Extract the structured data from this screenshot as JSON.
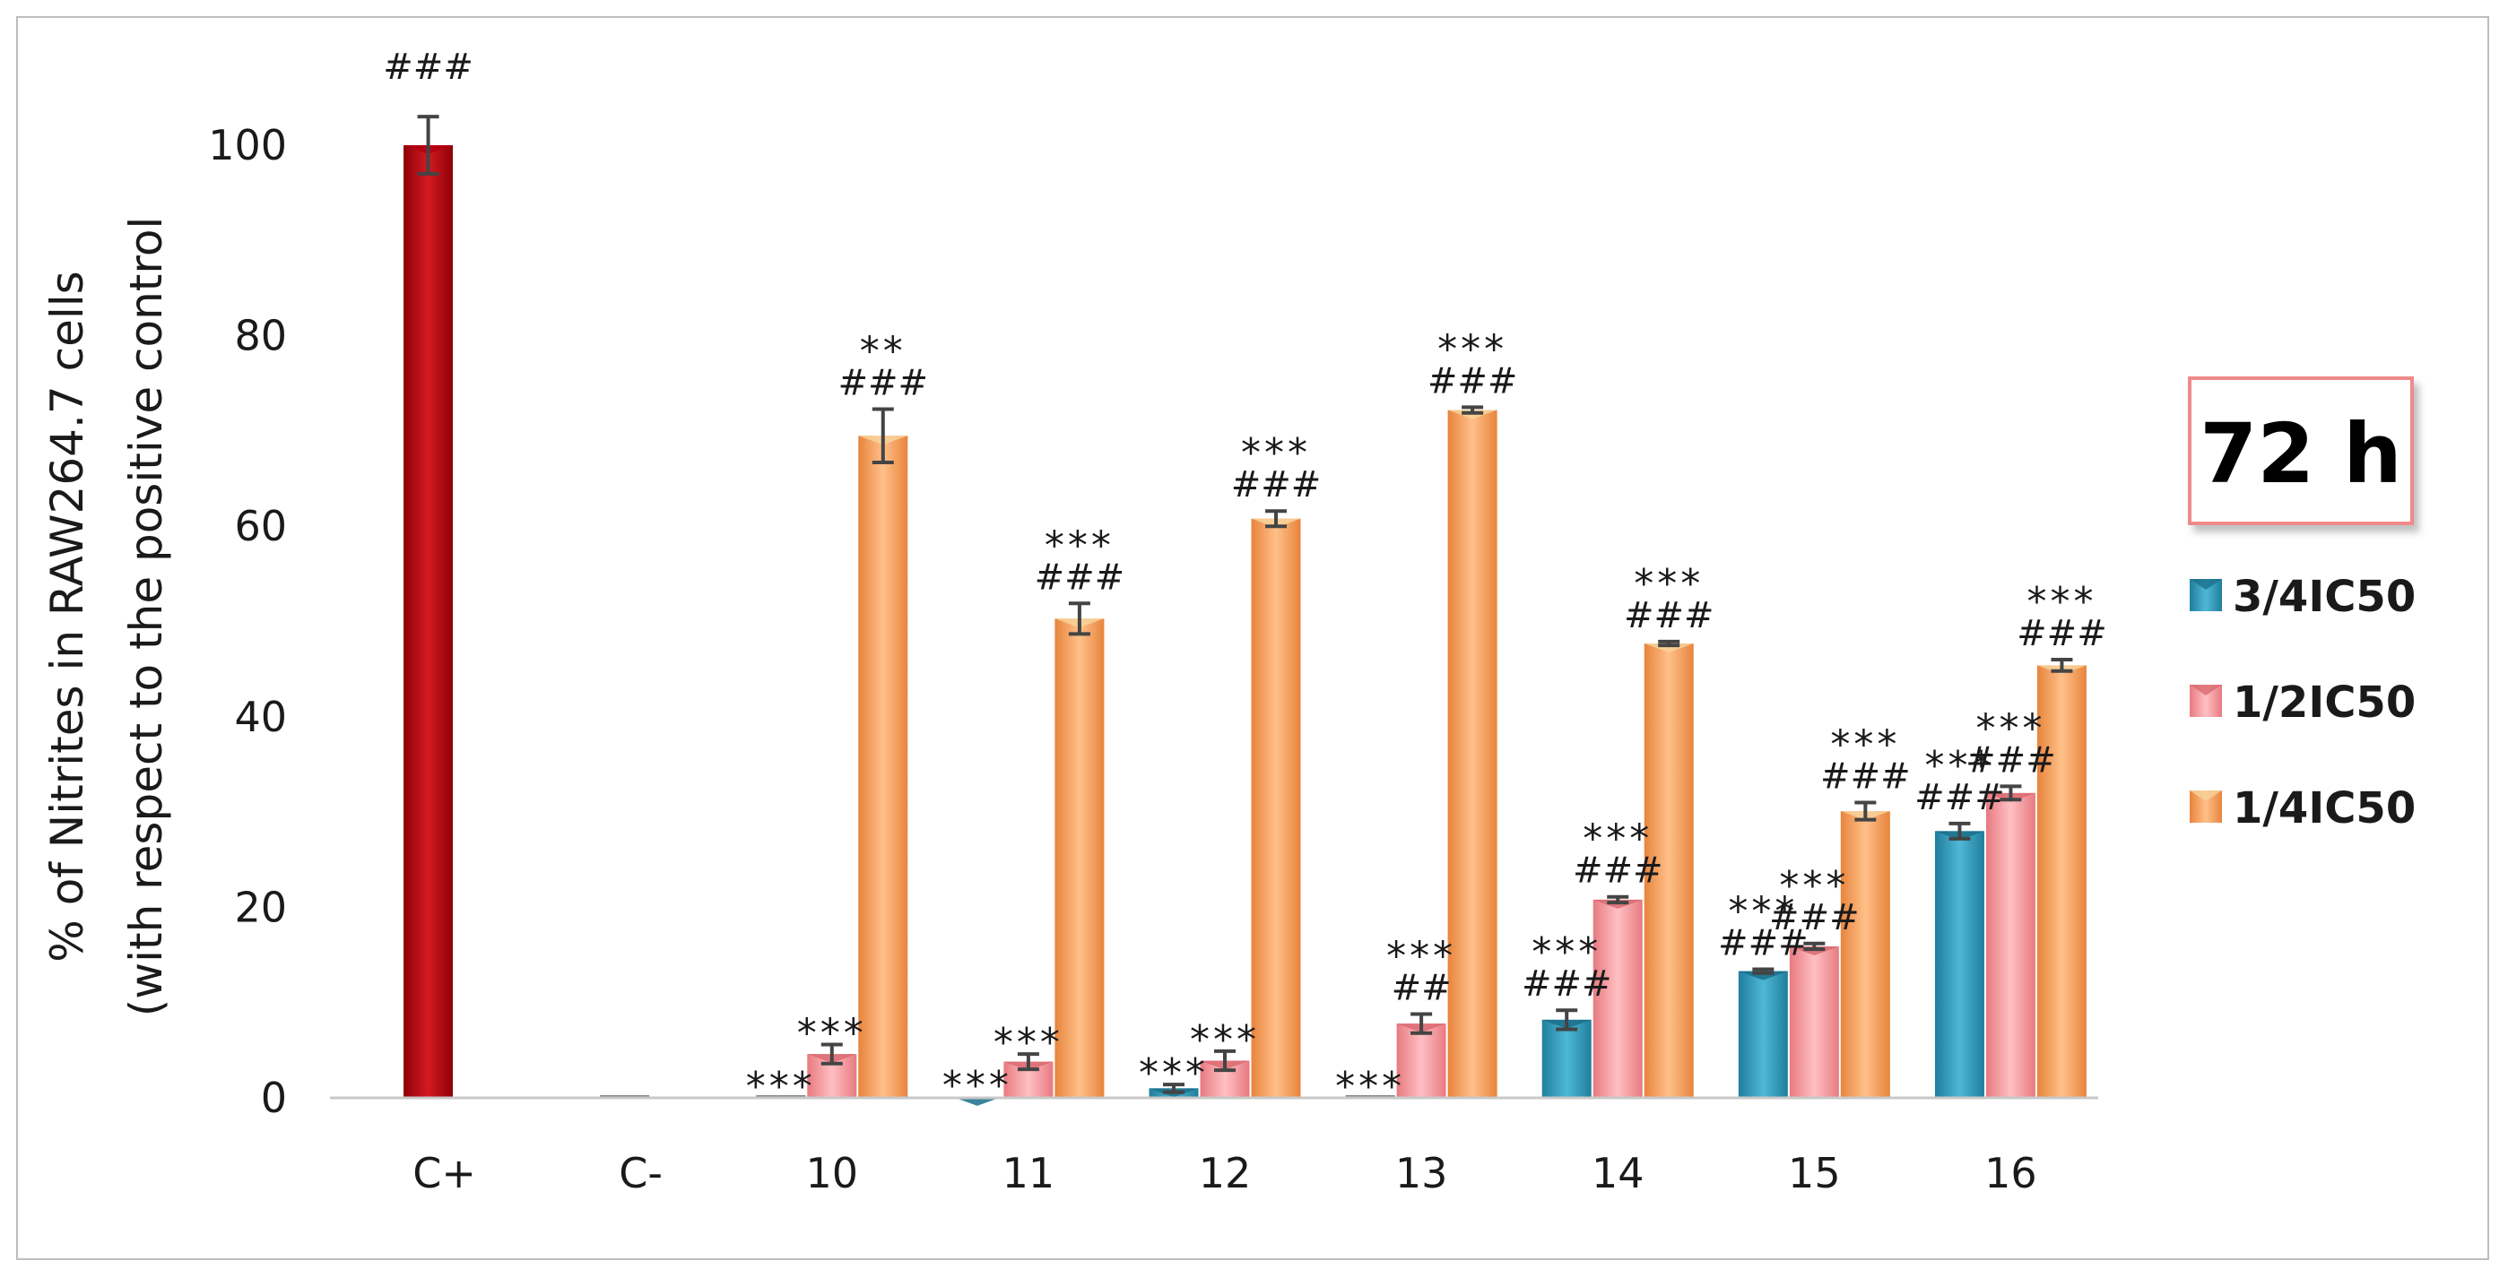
{
  "chart_data": {
    "type": "bar",
    "ylabel_line1": "% of Nitrites in RAW264.7 cells",
    "ylabel_line2": "(with respect to the positive control",
    "ylim": [
      0,
      100
    ],
    "yticks": [
      0,
      20,
      40,
      60,
      80,
      100
    ],
    "grid": false,
    "legend_position": "right",
    "time_label": "72 h",
    "positive_control": {
      "category": "C+",
      "value": 100,
      "error": 3.0,
      "sig_top": "###",
      "color": "#c0000a"
    },
    "negative_control": {
      "category": "C-",
      "value": 0
    },
    "categories": [
      "10",
      "11",
      "12",
      "13",
      "14",
      "15",
      "16"
    ],
    "series": [
      {
        "name": "3/4IC50",
        "color": "#3aa8c8",
        "values": [
          0,
          0.1,
          1.0,
          0,
          8.2,
          13.3,
          28.0
        ],
        "errors": [
          0,
          0,
          0.4,
          0,
          1.0,
          0.2,
          0.8
        ],
        "sig_stars": [
          "***",
          "***",
          "***",
          "***",
          "***",
          "***",
          "***"
        ],
        "sig_hash": [
          "",
          "",
          "",
          "",
          "###",
          "###",
          "###"
        ]
      },
      {
        "name": "1/2IC50",
        "color": "#f29a9f",
        "values": [
          4.6,
          3.8,
          3.9,
          7.8,
          20.8,
          15.9,
          32.0
        ],
        "errors": [
          1.0,
          0.8,
          1.0,
          1.0,
          0.3,
          0.3,
          0.7
        ],
        "sig_stars": [
          "***",
          "***",
          "***",
          "***",
          "***",
          "***",
          "***"
        ],
        "sig_hash": [
          "",
          "",
          "",
          "##",
          "###",
          "###",
          "###"
        ]
      },
      {
        "name": "1/4IC50",
        "color": "#f5a260",
        "values": [
          69.5,
          50.3,
          60.8,
          72.2,
          47.7,
          30.1,
          45.4
        ],
        "errors": [
          2.8,
          1.6,
          0.8,
          0.3,
          0.2,
          0.9,
          0.6
        ],
        "sig_stars": [
          "**",
          "***",
          "***",
          "***",
          "***",
          "***",
          "***"
        ],
        "sig_hash": [
          "###",
          "###",
          "###",
          "###",
          "###",
          "###",
          "###"
        ]
      }
    ]
  }
}
